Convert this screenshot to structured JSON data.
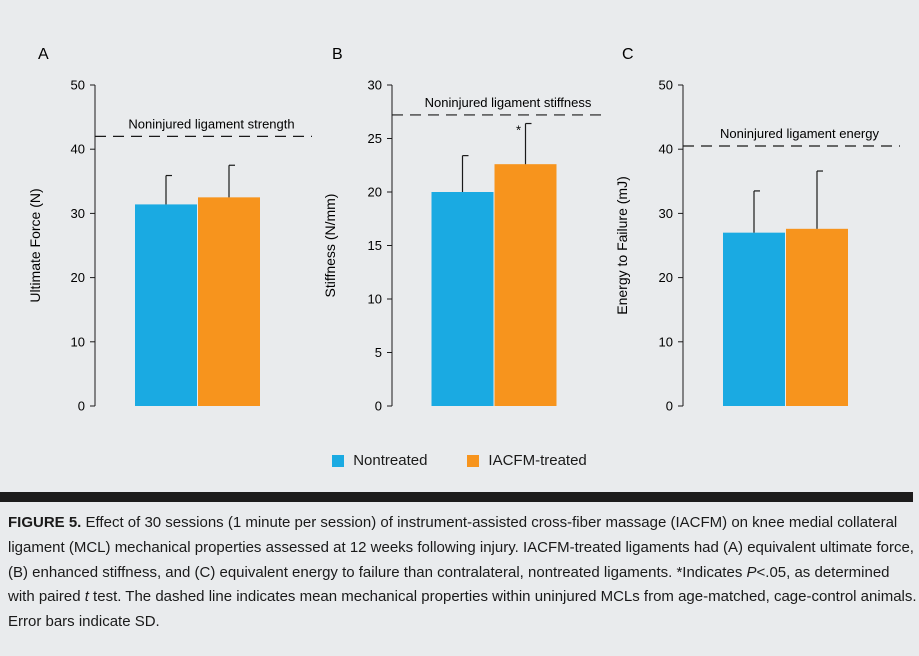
{
  "chart_data": [
    {
      "type": "bar",
      "panel": "A",
      "ylabel": "Ultimate Force (N)",
      "ylim": [
        0,
        50
      ],
      "yticks": [
        0,
        10,
        20,
        30,
        40,
        50
      ],
      "series": [
        {
          "name": "Nontreated",
          "value": 31.4,
          "sd": 4.5
        },
        {
          "name": "IACFM-treated",
          "value": 32.5,
          "sd": 5.0
        }
      ],
      "reference": {
        "label": "Noninjured ligament strength",
        "value": 42
      }
    },
    {
      "type": "bar",
      "panel": "B",
      "ylabel": "Stiffness (N/mm)",
      "ylim": [
        0,
        30
      ],
      "yticks": [
        0,
        5,
        10,
        15,
        20,
        25,
        30
      ],
      "series": [
        {
          "name": "Nontreated",
          "value": 20.0,
          "sd": 3.4
        },
        {
          "name": "IACFM-treated",
          "value": 22.6,
          "sd": 3.8,
          "annotation": "*"
        }
      ],
      "reference": {
        "label": "Noninjured ligament stiffness",
        "value": 27.2
      }
    },
    {
      "type": "bar",
      "panel": "C",
      "ylabel": "Energy to Failure (mJ)",
      "ylim": [
        0,
        50
      ],
      "yticks": [
        0,
        10,
        20,
        30,
        40,
        50
      ],
      "series": [
        {
          "name": "Nontreated",
          "value": 27.0,
          "sd": 6.5
        },
        {
          "name": "IACFM-treated",
          "value": 27.6,
          "sd": 9.0
        }
      ],
      "reference": {
        "label": "Noninjured ligament energy",
        "value": 40.5
      }
    }
  ],
  "legend": [
    {
      "label": "Nontreated",
      "color": "#1aaae2"
    },
    {
      "label": "IACFM-treated",
      "color": "#f7941d"
    }
  ],
  "caption": {
    "label": "FIGURE 5.",
    "text_1": " Effect of 30 sessions (1 minute per session) of instrument-assisted cross-fiber massage (IACFM) on knee medial collateral ligament (MCL) mechanical properties assessed at 12 weeks following injury. IACFM-treated ligaments had (A) equivalent ultimate force, (B) enhanced stiffness, and (C) equivalent energy to failure than contralateral, nontreated ligaments. *Indicates ",
    "p_symbol": "P",
    "text_2": "<.05, as determined with paired ",
    "t_symbol": "t",
    "text_3": " test. The dashed line indicates mean mechanical properties within uninjured MCLs from age-matched, cage-control animals. Error bars indicate SD."
  }
}
